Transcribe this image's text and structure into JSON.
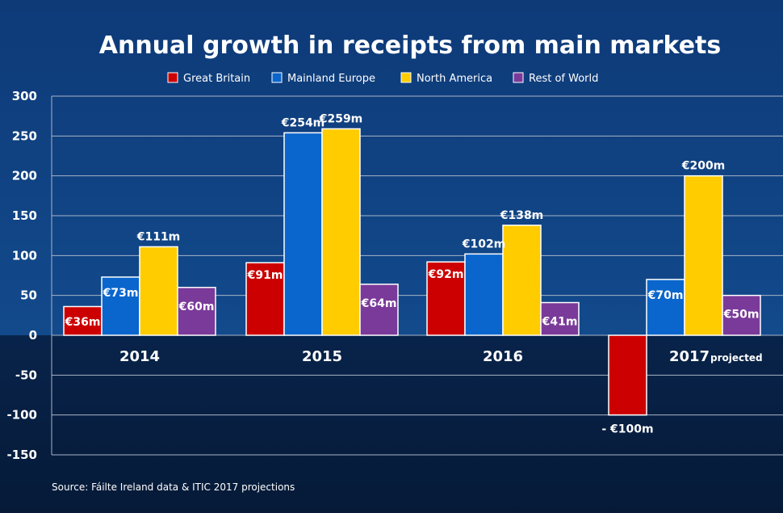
{
  "source": "Source: Fáilte Ireland data & ITIC 2017 projections",
  "chart_data": {
    "type": "bar",
    "title": "Annual growth in receipts from main markets",
    "categories": [
      "2014",
      "2015",
      "2016",
      "2017"
    ],
    "category_notes": [
      "",
      "",
      "",
      "projected"
    ],
    "ylim": [
      -150,
      300
    ],
    "yticks": [
      "300",
      "250",
      "200",
      "150",
      "100",
      "50",
      "0",
      "-50",
      "-100",
      "-150"
    ],
    "grid": true,
    "legend_position": "top",
    "series": [
      {
        "name": "Great Britain",
        "color": "#cc0000",
        "values": [
          36,
          91,
          92,
          -100
        ],
        "labels": [
          "€36m",
          "€91m",
          "€92m",
          "- €100m"
        ]
      },
      {
        "name": "Mainland Europe",
        "color": "#0a66cc",
        "values": [
          73,
          254,
          102,
          70
        ],
        "labels": [
          "€73m",
          "€254m",
          "€102m",
          "€70m"
        ]
      },
      {
        "name": "North America",
        "color": "#ffcc00",
        "values": [
          111,
          259,
          138,
          200
        ],
        "labels": [
          "€111m",
          "€259m",
          "€138m",
          "€200m"
        ]
      },
      {
        "name": "Rest of World",
        "color": "#7a3a99",
        "values": [
          60,
          64,
          41,
          50
        ],
        "labels": [
          "€60m",
          "€64m",
          "€41m",
          "€50m"
        ]
      }
    ]
  }
}
